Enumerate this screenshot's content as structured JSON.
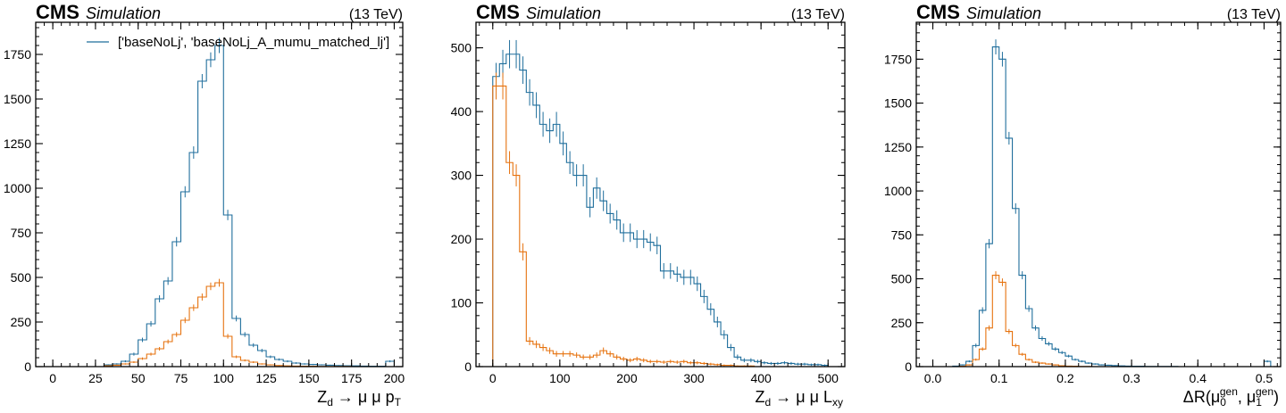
{
  "colors": {
    "series1": "#1f6e9c",
    "series2": "#e6720e",
    "axis": "#000000"
  },
  "legend_placement": "top-right",
  "chart_data": [
    {
      "type": "histogram",
      "header": {
        "cms": "CMS",
        "simulation": "Simulation",
        "energy": "(13 TeV)"
      },
      "xlabel_main": "Z",
      "xlabel_sub": "d",
      "xlabel_rest": " → μ μ p",
      "xlabel_sub2": "T",
      "xlim": [
        -10,
        205
      ],
      "ylim": [
        0,
        1930
      ],
      "xticks": [
        0,
        25,
        50,
        75,
        100,
        125,
        150,
        175,
        200
      ],
      "yticks": [
        0,
        250,
        500,
        750,
        1000,
        1250,
        1500,
        1750
      ],
      "legend": "['baseNoLj', 'baseNoLj_A_mumu_matched_lj']",
      "bin_edges": [
        30,
        35,
        40,
        45,
        50,
        55,
        60,
        65,
        70,
        75,
        80,
        85,
        90,
        95,
        100,
        105,
        110,
        115,
        120,
        125,
        130,
        135,
        140,
        145,
        150,
        155,
        160,
        165,
        170,
        175,
        180,
        185,
        190,
        195,
        200
      ],
      "series": [
        {
          "values": [
            10,
            15,
            30,
            70,
            150,
            240,
            380,
            480,
            700,
            980,
            1200,
            1600,
            1720,
            1800,
            850,
            270,
            180,
            120,
            90,
            55,
            40,
            30,
            20,
            15,
            12,
            10,
            8,
            6,
            5,
            4,
            3,
            2,
            2,
            30
          ],
          "errors": true
        },
        {
          "values": [
            5,
            8,
            15,
            25,
            45,
            70,
            100,
            140,
            180,
            260,
            330,
            390,
            450,
            470,
            170,
            55,
            35,
            25,
            15,
            10,
            6,
            4,
            3,
            2,
            2,
            1,
            1,
            1,
            1,
            0,
            0,
            0,
            0,
            0
          ],
          "errors": true
        }
      ]
    },
    {
      "type": "histogram",
      "header": {
        "cms": "CMS",
        "simulation": "Simulation",
        "energy": "(13 TeV)"
      },
      "xlabel_main": "Z",
      "xlabel_sub": "d",
      "xlabel_rest": " → μ μ L",
      "xlabel_sub2": "xy",
      "xlim": [
        -25,
        525
      ],
      "ylim": [
        0,
        540
      ],
      "xticks": [
        0,
        100,
        200,
        300,
        400,
        500
      ],
      "yticks": [
        0,
        100,
        200,
        300,
        400,
        500
      ],
      "legend": "",
      "bin_edges": [
        0,
        10,
        20,
        30,
        40,
        50,
        60,
        70,
        80,
        90,
        100,
        110,
        120,
        130,
        140,
        150,
        160,
        170,
        180,
        190,
        200,
        210,
        220,
        230,
        240,
        250,
        260,
        270,
        280,
        290,
        300,
        310,
        320,
        330,
        340,
        350,
        360,
        370,
        380,
        390,
        400,
        410,
        420,
        430,
        440,
        450,
        460,
        470,
        480,
        490,
        500
      ],
      "series": [
        {
          "values": [
            455,
            475,
            490,
            490,
            465,
            430,
            410,
            380,
            370,
            380,
            350,
            320,
            300,
            300,
            250,
            280,
            260,
            240,
            230,
            210,
            210,
            200,
            200,
            195,
            190,
            150,
            150,
            145,
            140,
            140,
            130,
            110,
            90,
            70,
            50,
            30,
            15,
            10,
            10,
            8,
            6,
            5,
            5,
            6,
            5,
            4,
            4,
            3,
            3,
            2
          ],
          "errors": true
        },
        {
          "values": [
            440,
            440,
            320,
            300,
            180,
            40,
            35,
            30,
            25,
            20,
            20,
            20,
            18,
            15,
            15,
            18,
            25,
            20,
            15,
            12,
            10,
            12,
            10,
            8,
            8,
            7,
            8,
            7,
            8,
            6,
            6,
            5,
            4,
            3,
            2,
            2,
            1,
            1,
            1,
            0,
            0,
            0,
            0,
            0,
            0,
            0,
            0,
            0,
            0,
            0
          ],
          "errors": true
        }
      ]
    },
    {
      "type": "histogram",
      "header": {
        "cms": "CMS",
        "simulation": "Simulation",
        "energy": "(13 TeV)"
      },
      "xlabel_prefix": "ΔR(μ",
      "xlabel_sub0": "0",
      "xlabel_sup": "gen",
      "xlabel_mid": ", μ",
      "xlabel_sub1": "1",
      "xlabel_end": ")",
      "xlim": [
        -0.025,
        0.525
      ],
      "ylim": [
        0,
        1960
      ],
      "xticks": [
        0.0,
        0.1,
        0.2,
        0.3,
        0.4,
        0.5
      ],
      "xtick_labels": [
        "0.0",
        "0.1",
        "0.2",
        "0.3",
        "0.4",
        "0.5"
      ],
      "yticks": [
        0,
        250,
        500,
        750,
        1000,
        1250,
        1500,
        1750
      ],
      "legend": "",
      "bin_edges": [
        0.03,
        0.04,
        0.05,
        0.06,
        0.07,
        0.08,
        0.09,
        0.1,
        0.11,
        0.12,
        0.13,
        0.14,
        0.15,
        0.16,
        0.17,
        0.18,
        0.19,
        0.2,
        0.21,
        0.22,
        0.23,
        0.24,
        0.25,
        0.26,
        0.27,
        0.28,
        0.29,
        0.3,
        0.31,
        0.32,
        0.33,
        0.34,
        0.35,
        0.36,
        0.37,
        0.38,
        0.39,
        0.4,
        0.41,
        0.42,
        0.43,
        0.44,
        0.45,
        0.46,
        0.47,
        0.48,
        0.49,
        0.5,
        0.51
      ],
      "series": [
        {
          "values": [
            3,
            10,
            30,
            120,
            320,
            700,
            1820,
            1750,
            1300,
            900,
            520,
            330,
            220,
            160,
            130,
            100,
            80,
            60,
            40,
            30,
            20,
            15,
            10,
            8,
            6,
            4,
            3,
            2,
            2,
            1,
            1,
            1,
            1,
            1,
            0,
            0,
            0,
            0,
            0,
            0,
            0,
            0,
            0,
            0,
            0,
            0,
            0,
            30
          ],
          "errors": true
        },
        {
          "values": [
            0,
            2,
            10,
            40,
            100,
            220,
            520,
            480,
            200,
            120,
            70,
            40,
            25,
            20,
            15,
            10,
            5,
            3,
            2,
            1,
            1,
            0,
            0,
            0,
            0,
            0,
            0,
            0,
            0,
            0,
            0,
            0,
            0,
            0,
            0,
            0,
            0,
            0,
            0,
            0,
            0,
            0,
            0,
            0,
            0,
            0,
            0,
            0
          ],
          "errors": true
        }
      ]
    }
  ]
}
